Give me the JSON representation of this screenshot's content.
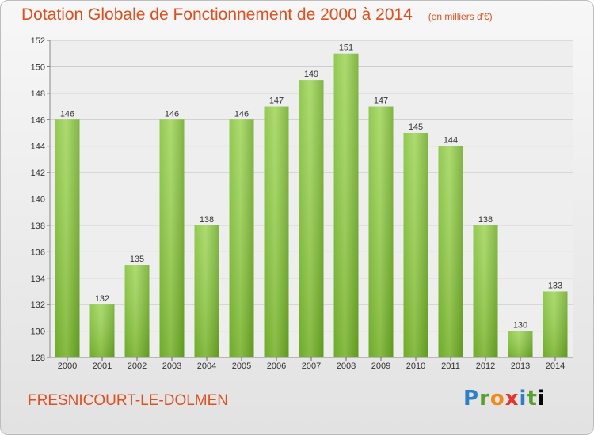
{
  "header": {
    "title": "Dotation Globale de Fonctionnement de 2000 à 2014",
    "unit": "(en milliers d'€)"
  },
  "footer": {
    "commune": "FRESNICOURT-LE-DOLMEN",
    "logo_letters": [
      "P",
      "r",
      "o",
      "x",
      "i",
      "t",
      "i"
    ]
  },
  "colors": {
    "title": "#e14f1f",
    "bar_light": "#9fd457",
    "bar_dark": "#5f9e1e"
  },
  "chart_data": {
    "type": "bar",
    "title": "Dotation Globale de Fonctionnement de 2000 à 2014",
    "categories": [
      "2000",
      "2001",
      "2002",
      "2003",
      "2004",
      "2005",
      "2006",
      "2007",
      "2008",
      "2009",
      "2010",
      "2011",
      "2012",
      "2013",
      "2014"
    ],
    "values": [
      146,
      132,
      135,
      146,
      138,
      146,
      147,
      149,
      151,
      147,
      145,
      144,
      138,
      130,
      133
    ],
    "ylim": [
      128,
      152
    ],
    "yticks": [
      128,
      130,
      132,
      134,
      136,
      138,
      140,
      142,
      144,
      146,
      148,
      150,
      152
    ],
    "grid": true,
    "xlabel": "",
    "ylabel": ""
  }
}
